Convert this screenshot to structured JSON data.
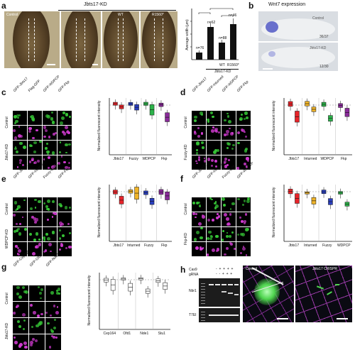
{
  "panels": {
    "a": {
      "label": "a",
      "title": "Jbts17-KD",
      "image_labels": [
        "Control",
        "",
        "WT",
        "R1560*"
      ],
      "chart": {
        "ylabel": "Average width (μm)",
        "xlabels": [
          "",
          "",
          "WT",
          "R1560*"
        ],
        "group_label": "Jbts17-KD",
        "n_labels": [
          "n=76",
          "n=62",
          "n=88",
          "n=46"
        ]
      }
    },
    "b": {
      "label": "b",
      "title": "Wnt7 expression",
      "image_labels": [
        "Control",
        "Jbts17-KD"
      ],
      "counts": [
        "36/37",
        "12/30"
      ]
    },
    "c": {
      "label": "c",
      "rows": [
        "Control",
        "Jbts17-KD"
      ],
      "cols": [
        "GFP-Jbts17",
        "Flag-GFP",
        "GFP-WDPCP",
        "GFP-Fkp"
      ],
      "plot": {
        "ylabel": "Normalized fluorescent intensity",
        "groups": [
          "Jbts17",
          "Fuzzy",
          "WDPCP",
          "Fkp"
        ]
      }
    },
    "d": {
      "label": "d",
      "rows": [
        "Control",
        "Fuzzy-KD"
      ],
      "cols": [
        "GFP-Jbts17",
        "GFP-Inturned",
        "GFP-WDPCP",
        "GFP-Fkp"
      ],
      "plot": {
        "ylabel": "Normalized fluorescent intensity",
        "groups": [
          "Jbts17",
          "Inturned",
          "WDPCP",
          "Fkp"
        ]
      }
    },
    "e": {
      "label": "e",
      "rows": [
        "Control",
        "WDPCP-KD"
      ],
      "cols": [
        "GFP-Jbts17",
        "GFP-Inturned",
        "Fuzzy-GFP",
        "GFP-Fkp"
      ],
      "plot": {
        "ylabel": "Normalized fluorescent intensity",
        "groups": [
          "Jbts17",
          "Inturned",
          "Fuzzy",
          "Fkp"
        ]
      }
    },
    "f": {
      "label": "f",
      "rows": [
        "Control",
        "Fkp-KD"
      ],
      "cols": [
        "GFP-Jbts17",
        "GFP-Inturned",
        "Fuzzy-GFP",
        "GFP-WDPCP"
      ],
      "plot": {
        "ylabel": "Normalized fluorescent intensity",
        "groups": [
          "Jbts17",
          "Inturned",
          "Fuzzy",
          "WDPCP"
        ]
      }
    },
    "g": {
      "label": "g",
      "rows": [
        "Control",
        "Jbts17-KD"
      ],
      "cols": [
        "GFP-Cep164",
        "GFP-Ofd1",
        "GFP-Nde1"
      ],
      "plot": {
        "ylabel": "Normalized fluorescent intensity",
        "groups": [
          "Cep164",
          "Ofd1",
          "Nde1",
          "Stu1"
        ]
      }
    },
    "h": {
      "label": "h",
      "gel_row_labels": [
        "Cas9",
        "gRNA",
        "Nbr1",
        "T7EI"
      ],
      "image_labels": [
        "Control",
        "Jbts17 CRISPR"
      ]
    }
  }
}
